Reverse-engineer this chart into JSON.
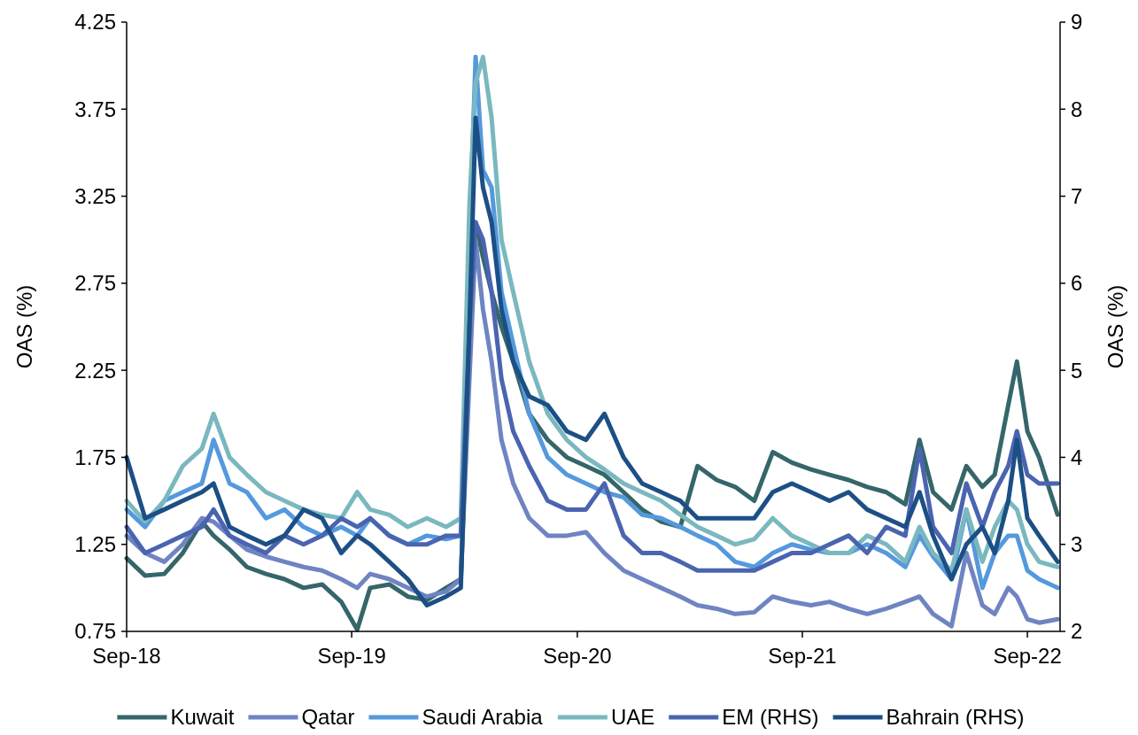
{
  "chart_data": {
    "type": "line",
    "ylabel": "OAS (%)",
    "y2label": "OAS (%)",
    "x": [
      "2018-09-01",
      "2018-10-01",
      "2018-11-01",
      "2018-12-01",
      "2019-01-01",
      "2019-01-20",
      "2019-02-15",
      "2019-03-15",
      "2019-04-15",
      "2019-05-15",
      "2019-06-15",
      "2019-07-15",
      "2019-08-15",
      "2019-09-10",
      "2019-10-01",
      "2019-11-01",
      "2019-12-01",
      "2020-01-01",
      "2020-02-01",
      "2020-02-25",
      "2020-03-10",
      "2020-03-20",
      "2020-04-01",
      "2020-04-15",
      "2020-05-01",
      "2020-05-20",
      "2020-06-15",
      "2020-07-15",
      "2020-08-15",
      "2020-09-15",
      "2020-10-15",
      "2020-11-15",
      "2020-12-15",
      "2021-01-15",
      "2021-02-15",
      "2021-03-15",
      "2021-04-15",
      "2021-05-15",
      "2021-06-15",
      "2021-07-15",
      "2021-08-15",
      "2021-09-15",
      "2021-10-15",
      "2021-11-15",
      "2021-12-15",
      "2022-01-15",
      "2022-02-15",
      "2022-03-10",
      "2022-04-01",
      "2022-05-01",
      "2022-05-25",
      "2022-06-20",
      "2022-07-10",
      "2022-08-01",
      "2022-08-15",
      "2022-09-01",
      "2022-09-20",
      "2022-10-20"
    ],
    "series": [
      {
        "name": "Kuwait",
        "color": "#35666a",
        "values": [
          1.17,
          1.07,
          1.08,
          1.2,
          1.38,
          1.3,
          1.22,
          1.12,
          1.08,
          1.05,
          1.0,
          1.02,
          0.92,
          0.76,
          1.0,
          1.02,
          0.95,
          0.93,
          1.0,
          1.05,
          2.4,
          3.1,
          2.9,
          2.7,
          2.5,
          2.3,
          2.0,
          1.85,
          1.75,
          1.7,
          1.65,
          1.55,
          1.45,
          1.38,
          1.35,
          1.7,
          1.62,
          1.58,
          1.5,
          1.78,
          1.72,
          1.68,
          1.65,
          1.62,
          1.58,
          1.55,
          1.48,
          1.85,
          1.55,
          1.45,
          1.7,
          1.58,
          1.65,
          2.05,
          2.3,
          1.9,
          1.75,
          1.42
        ]
      },
      {
        "name": "Qatar",
        "color": "#6f84c2",
        "values": [
          1.3,
          1.2,
          1.15,
          1.25,
          1.4,
          1.38,
          1.3,
          1.22,
          1.18,
          1.15,
          1.12,
          1.1,
          1.05,
          1.0,
          1.08,
          1.05,
          1.0,
          0.95,
          0.98,
          1.05,
          2.2,
          3.0,
          2.6,
          2.3,
          1.85,
          1.6,
          1.4,
          1.3,
          1.3,
          1.32,
          1.2,
          1.1,
          1.05,
          1.0,
          0.95,
          0.9,
          0.88,
          0.85,
          0.86,
          0.95,
          0.92,
          0.9,
          0.92,
          0.88,
          0.85,
          0.88,
          0.92,
          0.95,
          0.85,
          0.78,
          1.2,
          0.9,
          0.85,
          1.0,
          0.95,
          0.82,
          0.8,
          0.82
        ]
      },
      {
        "name": "Saudi Arabia",
        "color": "#5599dd",
        "values": [
          1.45,
          1.35,
          1.5,
          1.55,
          1.6,
          1.85,
          1.6,
          1.55,
          1.4,
          1.45,
          1.35,
          1.3,
          1.35,
          1.3,
          1.4,
          1.3,
          1.25,
          1.3,
          1.28,
          1.3,
          3.0,
          4.05,
          3.4,
          3.3,
          2.7,
          2.4,
          2.0,
          1.75,
          1.65,
          1.6,
          1.55,
          1.52,
          1.42,
          1.4,
          1.35,
          1.3,
          1.25,
          1.15,
          1.12,
          1.2,
          1.25,
          1.22,
          1.2,
          1.2,
          1.25,
          1.2,
          1.12,
          1.3,
          1.18,
          1.05,
          1.45,
          1.0,
          1.2,
          1.3,
          1.3,
          1.1,
          1.05,
          1.0
        ]
      },
      {
        "name": "UAE",
        "color": "#7ab8bf",
        "values": [
          1.5,
          1.38,
          1.5,
          1.7,
          1.8,
          2.0,
          1.75,
          1.65,
          1.55,
          1.5,
          1.45,
          1.42,
          1.4,
          1.55,
          1.45,
          1.42,
          1.35,
          1.4,
          1.35,
          1.4,
          3.2,
          3.9,
          4.05,
          3.7,
          3.0,
          2.7,
          2.3,
          2.0,
          1.85,
          1.75,
          1.68,
          1.6,
          1.55,
          1.5,
          1.42,
          1.35,
          1.3,
          1.25,
          1.28,
          1.4,
          1.3,
          1.25,
          1.2,
          1.2,
          1.3,
          1.25,
          1.15,
          1.35,
          1.2,
          1.1,
          1.45,
          1.15,
          1.35,
          1.5,
          1.45,
          1.25,
          1.15,
          1.12
        ]
      },
      {
        "name": "EM (RHS)",
        "color": "#4a64b0",
        "axis": "y2",
        "values": [
          3.2,
          2.9,
          3.0,
          3.1,
          3.2,
          3.4,
          3.1,
          3.0,
          2.9,
          3.1,
          3.0,
          3.1,
          3.3,
          3.2,
          3.3,
          3.1,
          3.0,
          3.0,
          3.1,
          3.1,
          5.5,
          6.7,
          6.5,
          5.9,
          4.9,
          4.3,
          3.9,
          3.5,
          3.4,
          3.4,
          3.7,
          3.1,
          2.9,
          2.9,
          2.8,
          2.7,
          2.7,
          2.7,
          2.7,
          2.8,
          2.9,
          2.9,
          3.0,
          3.1,
          2.9,
          3.2,
          3.1,
          4.1,
          3.2,
          2.9,
          3.7,
          3.2,
          3.6,
          3.9,
          4.3,
          3.8,
          3.7,
          3.7
        ]
      },
      {
        "name": "Bahrain (RHS)",
        "color": "#1c4f85",
        "axis": "y2",
        "values": [
          4.0,
          3.3,
          3.4,
          3.5,
          3.6,
          3.7,
          3.2,
          3.1,
          3.0,
          3.1,
          3.4,
          3.3,
          2.9,
          3.1,
          3.0,
          2.8,
          2.6,
          2.3,
          2.4,
          2.5,
          5.5,
          7.9,
          7.1,
          6.7,
          5.7,
          5.1,
          4.7,
          4.6,
          4.3,
          4.2,
          4.5,
          4.0,
          3.7,
          3.6,
          3.5,
          3.3,
          3.3,
          3.3,
          3.3,
          3.6,
          3.7,
          3.6,
          3.5,
          3.6,
          3.4,
          3.3,
          3.2,
          3.6,
          3.1,
          2.6,
          3.0,
          3.2,
          2.9,
          3.5,
          4.2,
          3.3,
          3.1,
          2.8
        ]
      }
    ],
    "xlim": [
      "2018-09-01",
      "2022-10-24"
    ],
    "xticks": [
      {
        "value": "2018-09-01",
        "label": "Sep-18"
      },
      {
        "value": "2019-09-01",
        "label": "Sep-19"
      },
      {
        "value": "2020-09-01",
        "label": "Sep-20"
      },
      {
        "value": "2021-09-01",
        "label": "Sep-21"
      },
      {
        "value": "2022-09-01",
        "label": "Sep-22"
      }
    ],
    "ylim": [
      0.75,
      4.25
    ],
    "yticks": [
      0.75,
      1.25,
      1.75,
      2.25,
      2.75,
      3.25,
      3.75,
      4.25
    ],
    "y2lim": [
      2,
      9
    ],
    "y2ticks": [
      2,
      3,
      4,
      5,
      6,
      7,
      8,
      9
    ],
    "grid": false,
    "legend": "bottom",
    "marker": "none",
    "line_style": "solid"
  }
}
